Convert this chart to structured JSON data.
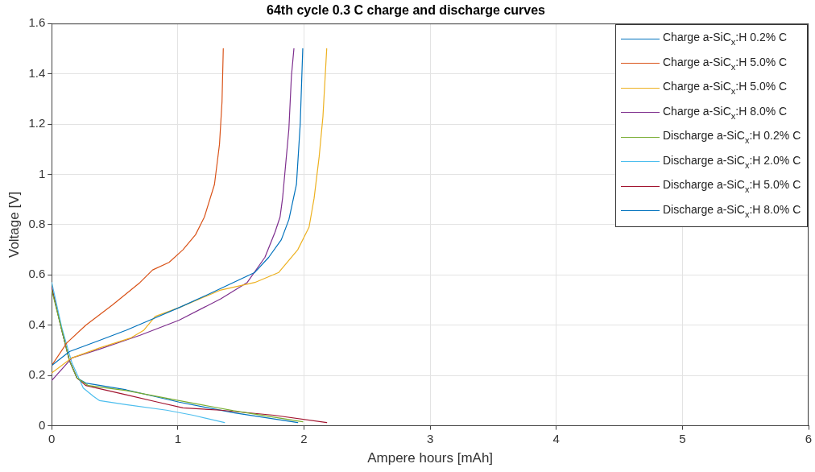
{
  "chart_data": {
    "type": "line",
    "title": "64th cycle 0.3 C charge and discharge curves",
    "xlabel": "Ampere hours [mAh]",
    "ylabel": "Voltage [V]",
    "xlim": [
      0,
      6
    ],
    "xticks": [
      0,
      1,
      2,
      3,
      4,
      5,
      6
    ],
    "ylim": [
      0,
      1.6
    ],
    "yticks": [
      0,
      0.2,
      0.4,
      0.6,
      0.8,
      1,
      1.2,
      1.4,
      1.6
    ],
    "grid": true,
    "legend": "top right",
    "marker": "none",
    "line_style": "solid",
    "series": [
      {
        "name": "Charge a-SiC$_{x}$:H 0.2% C",
        "color": "#0072bd",
        "x": [
          0,
          0.14,
          0.38,
          0.59,
          0.8,
          1.01,
          1.23,
          1.44,
          1.61,
          1.72,
          1.82,
          1.88,
          1.94,
          1.97,
          1.99
        ],
        "values": [
          0.24,
          0.295,
          0.34,
          0.38,
          0.425,
          0.47,
          0.52,
          0.57,
          0.61,
          0.67,
          0.74,
          0.82,
          0.96,
          1.2,
          1.5
        ]
      },
      {
        "name": "Charge a-SiC$_{x}$:H 5.0% C",
        "color": "#d95319",
        "x": [
          0,
          0.12,
          0.27,
          0.48,
          0.7,
          0.8,
          0.93,
          1.04,
          1.14,
          1.21,
          1.29,
          1.33,
          1.35,
          1.36
        ],
        "values": [
          0.24,
          0.33,
          0.4,
          0.48,
          0.57,
          0.62,
          0.65,
          0.7,
          0.76,
          0.83,
          0.96,
          1.12,
          1.29,
          1.5
        ]
      },
      {
        "name": "Charge a-SiC$_{x}$:H 5.0% C",
        "color": "#edb120",
        "x": [
          0,
          0.16,
          0.38,
          0.63,
          0.73,
          0.82,
          1.01,
          1.34,
          1.61,
          1.8,
          1.95,
          2.04,
          2.08,
          2.12,
          2.15,
          2.18
        ],
        "values": [
          0.21,
          0.27,
          0.31,
          0.35,
          0.38,
          0.435,
          0.47,
          0.54,
          0.57,
          0.61,
          0.7,
          0.79,
          0.905,
          1.07,
          1.23,
          1.5
        ]
      },
      {
        "name": "Charge a-SiC$_{x}$:H 8.0% C",
        "color": "#7e2f8e",
        "x": [
          0,
          0.16,
          0.38,
          0.7,
          1.01,
          1.34,
          1.55,
          1.69,
          1.77,
          1.81,
          1.83,
          1.88,
          1.9,
          1.92
        ],
        "values": [
          0.18,
          0.27,
          0.305,
          0.36,
          0.42,
          0.505,
          0.57,
          0.67,
          0.77,
          0.83,
          0.905,
          1.18,
          1.39,
          1.5
        ]
      },
      {
        "name": "Discharge a-SiC$_{x}$:H 0.2% C",
        "color": "#77ac30",
        "x": [
          0,
          0.08,
          0.14,
          0.2,
          0.29,
          0.59,
          1.01,
          1.44,
          1.99
        ],
        "values": [
          0.54,
          0.38,
          0.26,
          0.19,
          0.16,
          0.14,
          0.1,
          0.06,
          0.016
        ]
      },
      {
        "name": "Discharge a-SiC$_{x}$:H 2.0% C",
        "color": "#4dbeee",
        "x": [
          0,
          0.08,
          0.16,
          0.25,
          0.33,
          0.38,
          0.59,
          0.91,
          1.12,
          1.37
        ],
        "values": [
          0.57,
          0.39,
          0.25,
          0.15,
          0.117,
          0.1,
          0.084,
          0.062,
          0.042,
          0.013
        ]
      },
      {
        "name": "Discharge a-SiC$_{x}$:H 5.0% C",
        "color": "#a2142f",
        "x": [
          0,
          0.08,
          0.14,
          0.2,
          0.27,
          0.59,
          0.84,
          1.04,
          1.34,
          1.76,
          2.18
        ],
        "values": [
          0.55,
          0.38,
          0.26,
          0.19,
          0.16,
          0.123,
          0.094,
          0.071,
          0.062,
          0.042,
          0.013
        ]
      },
      {
        "name": "Discharge a-SiC$_{x}$:H 8.0% C",
        "color": "#0072bd",
        "x": [
          0,
          0.08,
          0.14,
          0.2,
          0.27,
          0.59,
          1.01,
          1.44,
          1.95
        ],
        "values": [
          0.55,
          0.38,
          0.26,
          0.19,
          0.17,
          0.143,
          0.094,
          0.052,
          0.013
        ]
      }
    ]
  }
}
